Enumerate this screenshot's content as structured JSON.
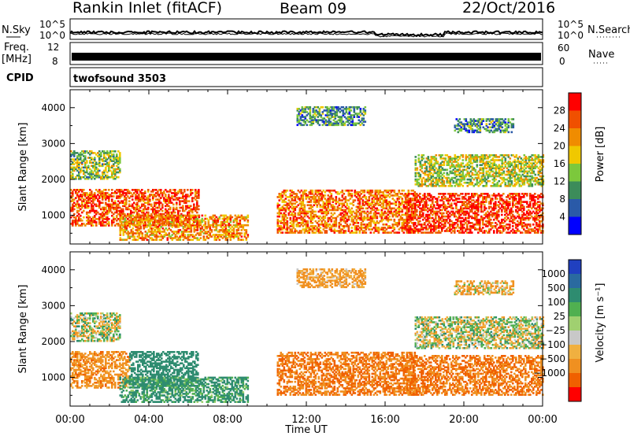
{
  "header": {
    "station": "Rankin Inlet (fitACF)",
    "beam": "Beam 09",
    "date": "22/Oct/2016"
  },
  "noise_panel": {
    "left_label": "N.Sky",
    "right_label": "N.Search",
    "tick_top": "10^5",
    "tick_bottom": "10^0"
  },
  "freq_panel": {
    "left_label_1": "Freq.",
    "left_label_2": "[MHz]",
    "tick_left_top": "12",
    "tick_left_bottom": "8",
    "right_label": "Nave",
    "tick_right_top": "60",
    "tick_right_bottom": "0"
  },
  "cpid_panel": {
    "label": "CPID",
    "program": "twofsound 3503"
  },
  "x_axis": {
    "title": "Time UT",
    "ticks": [
      "00:00",
      "04:00",
      "08:00",
      "12:00",
      "16:00",
      "20:00",
      "00:00"
    ]
  },
  "power_panel": {
    "ylabel": "Slant Range [km]",
    "yticks": [
      "1000",
      "2000",
      "3000",
      "4000"
    ],
    "colorbar_label": "Power [dB]",
    "colorbar_ticks": [
      "4",
      "8",
      "12",
      "16",
      "20",
      "24",
      "28"
    ],
    "colors": [
      "#0000ff",
      "#2a5aa8",
      "#3c8c5a",
      "#7cc83c",
      "#f0c800",
      "#f08c00",
      "#f05000",
      "#ff0000"
    ]
  },
  "velocity_panel": {
    "ylabel": "Slant Range [km]",
    "yticks": [
      "1000",
      "2000",
      "3000",
      "4000"
    ],
    "colorbar_label": "Velocity [m s⁻¹]",
    "colorbar_ticks": [
      "1000",
      "500",
      "100",
      "25",
      "−25",
      "−100",
      "−500",
      "−1000"
    ],
    "colors": [
      "#2040c0",
      "#2a6aa0",
      "#2e8c70",
      "#50b050",
      "#a0d070",
      "#c8c8c8",
      "#f0b040",
      "#f09020",
      "#f06000",
      "#ff0000"
    ]
  },
  "chart_data": [
    {
      "type": "heatmap",
      "title": "Power",
      "xlabel": "Time UT",
      "ylabel": "Slant Range [km]",
      "x_range_hours": [
        0,
        24
      ],
      "ylim": [
        200,
        4500
      ],
      "colorbar": {
        "label": "Power [dB]",
        "min": 0,
        "max": 32
      },
      "echo_regions": [
        {
          "t_start": 0.0,
          "t_end": 6.5,
          "r_min": 700,
          "r_max": 1700,
          "level_db": 26
        },
        {
          "t_start": 0.0,
          "t_end": 2.5,
          "r_min": 2000,
          "r_max": 2800,
          "level_db": 14
        },
        {
          "t_start": 2.5,
          "t_end": 9.0,
          "r_min": 300,
          "r_max": 1000,
          "level_db": 22
        },
        {
          "t_start": 10.5,
          "t_end": 17.5,
          "r_min": 500,
          "r_max": 1700,
          "level_db": 24
        },
        {
          "t_start": 11.5,
          "t_end": 15.0,
          "r_min": 3500,
          "r_max": 4000,
          "level_db": 10
        },
        {
          "t_start": 17.0,
          "t_end": 24.0,
          "r_min": 500,
          "r_max": 1600,
          "level_db": 28
        },
        {
          "t_start": 17.5,
          "t_end": 24.0,
          "r_min": 1800,
          "r_max": 2700,
          "level_db": 16
        },
        {
          "t_start": 19.5,
          "t_end": 22.5,
          "r_min": 3300,
          "r_max": 3700,
          "level_db": 10
        }
      ]
    },
    {
      "type": "heatmap",
      "title": "Velocity",
      "xlabel": "Time UT",
      "ylabel": "Slant Range [km]",
      "x_range_hours": [
        0,
        24
      ],
      "ylim": [
        200,
        4500
      ],
      "colorbar": {
        "label": "Velocity [m s⁻¹]",
        "levels": [
          1000,
          500,
          100,
          25,
          -25,
          -100,
          -500,
          -1000
        ]
      },
      "echo_regions": [
        {
          "t_start": 0.0,
          "t_end": 3.0,
          "r_min": 700,
          "r_max": 1700,
          "velocity": -200
        },
        {
          "t_start": 3.0,
          "t_end": 6.5,
          "r_min": 700,
          "r_max": 1700,
          "velocity": 300
        },
        {
          "t_start": 0.0,
          "t_end": 2.5,
          "r_min": 2000,
          "r_max": 2800,
          "velocity": 0
        },
        {
          "t_start": 2.5,
          "t_end": 9.0,
          "r_min": 300,
          "r_max": 1000,
          "velocity": 150
        },
        {
          "t_start": 10.5,
          "t_end": 17.5,
          "r_min": 500,
          "r_max": 1700,
          "velocity": -300
        },
        {
          "t_start": 11.5,
          "t_end": 15.0,
          "r_min": 3500,
          "r_max": 4000,
          "velocity": -150
        },
        {
          "t_start": 17.0,
          "t_end": 24.0,
          "r_min": 500,
          "r_max": 1600,
          "velocity": -300
        },
        {
          "t_start": 17.5,
          "t_end": 24.0,
          "r_min": 1800,
          "r_max": 2700,
          "velocity": 0
        },
        {
          "t_start": 19.5,
          "t_end": 22.5,
          "r_min": 3300,
          "r_max": 3700,
          "velocity": -100
        }
      ]
    }
  ]
}
